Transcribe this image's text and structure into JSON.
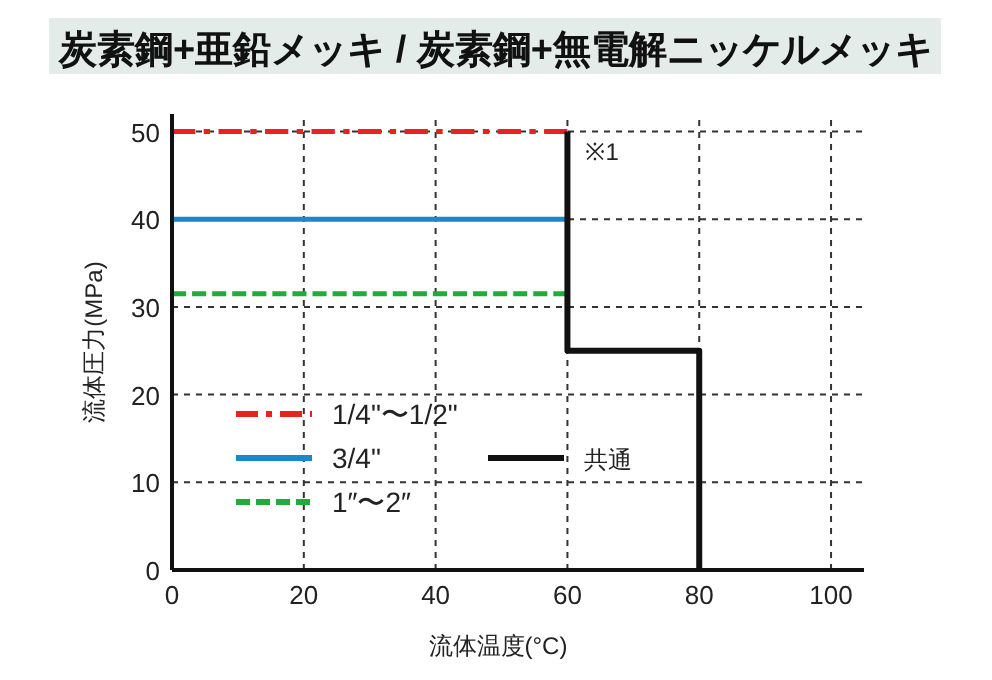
{
  "chart_data": {
    "type": "line",
    "title": "炭素鋼+亜鉛メッキ / 炭素鋼+無電解ニッケルメッキ",
    "xlabel": "流体温度(°C)",
    "ylabel": "流体圧力(MPa)",
    "xlim": [
      0,
      105
    ],
    "ylim": [
      0,
      52
    ],
    "xticks": [
      0,
      20,
      40,
      60,
      80,
      100
    ],
    "yticks": [
      0,
      10,
      20,
      30,
      40,
      50
    ],
    "grid": true,
    "legend": "bottom left",
    "marker": "none",
    "series": [
      {
        "name": "1/4\"〜1/2\"",
        "color": "#e8231e",
        "line_style": "dashdot",
        "x": [
          0,
          60
        ],
        "values": [
          50,
          50
        ]
      },
      {
        "name": "3/4\"",
        "color": "#1a87cf",
        "line_style": "solid",
        "x": [
          0,
          60
        ],
        "values": [
          40,
          40
        ]
      },
      {
        "name": "1″〜2″",
        "color": "#22ab38",
        "line_style": "dashed",
        "x": [
          0,
          60
        ],
        "values": [
          31.5,
          31.5
        ]
      },
      {
        "name": "共通",
        "color": "#111111",
        "line_style": "solid",
        "x": [
          60,
          60,
          80,
          80
        ],
        "values": [
          50,
          25,
          25,
          0
        ]
      }
    ],
    "annotations": [
      {
        "text": "※1",
        "x": 60,
        "y": 50
      }
    ]
  }
}
